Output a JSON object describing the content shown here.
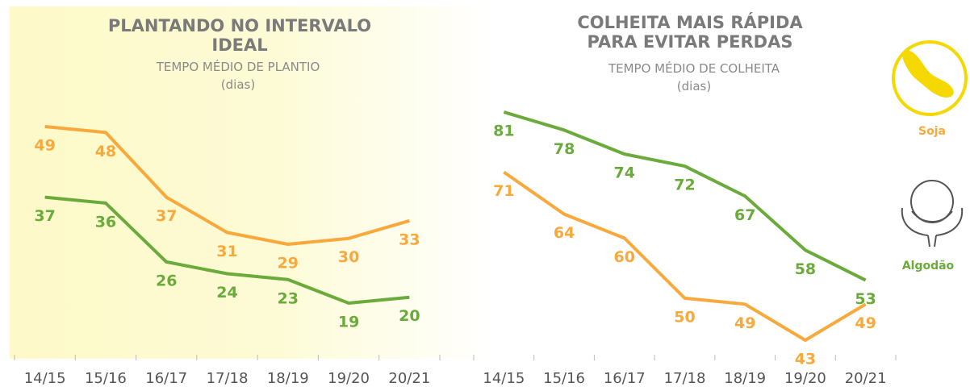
{
  "chart_data": [
    {
      "type": "line",
      "title": "PLANTANDO NO INTERVALO IDEAL",
      "subtitle": "TEMPO MÉDIO DE PLANTIO",
      "unit": "(dias)",
      "categories": [
        "14/15",
        "15/16",
        "16/17",
        "17/18",
        "18/19",
        "19/20",
        "20/21"
      ],
      "series": [
        {
          "name": "Soja",
          "color": "#f9a93b",
          "values": [
            49,
            48,
            37,
            31,
            29,
            30,
            33
          ]
        },
        {
          "name": "Algodão",
          "color": "#6aab3b",
          "values": [
            37,
            36,
            26,
            24,
            23,
            19,
            20
          ]
        }
      ]
    },
    {
      "type": "line",
      "title": "COLHEITA MAIS RÁPIDA PARA EVITAR PERDAS",
      "subtitle": "TEMPO MÉDIO DE COLHEITA",
      "unit": "(dias)",
      "categories": [
        "14/15",
        "15/16",
        "16/17",
        "17/18",
        "18/19",
        "19/20",
        "20/21"
      ],
      "series": [
        {
          "name": "Soja",
          "color": "#f9a93b",
          "values": [
            71,
            64,
            60,
            50,
            49,
            43,
            49
          ]
        },
        {
          "name": "Algodão",
          "color": "#6aab3b",
          "values": [
            81,
            78,
            74,
            72,
            67,
            58,
            53
          ]
        }
      ]
    }
  ]
}
